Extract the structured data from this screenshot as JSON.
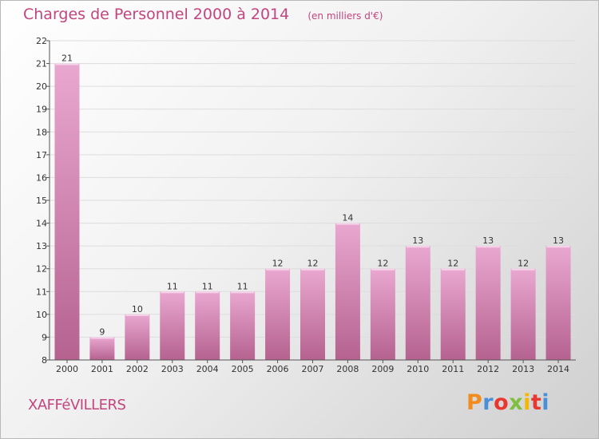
{
  "header": {
    "title": "Charges de Personnel 2000 à 2014",
    "subtitle": "(en milliers d'€)"
  },
  "footer": {
    "commune": "XAFFéVILLERS",
    "logo_text": "Proxiti",
    "logo_colors": [
      "#f28c1e",
      "#4a90d9",
      "#e8372e",
      "#7fbf3f",
      "#f5b800",
      "#e8372e",
      "#4a90d9"
    ]
  },
  "colors": {
    "bar_top": "#e9a8d0",
    "bar_bottom": "#b5628f",
    "grid": "#dddddd",
    "axis": "#555555"
  },
  "chart_data": {
    "type": "bar",
    "categories": [
      "2000",
      "2001",
      "2002",
      "2003",
      "2004",
      "2005",
      "2006",
      "2007",
      "2008",
      "2009",
      "2010",
      "2011",
      "2012",
      "2013",
      "2014"
    ],
    "values": [
      21,
      9,
      10,
      11,
      11,
      11,
      12,
      12,
      14,
      12,
      13,
      12,
      13,
      12,
      13
    ],
    "value_labels": [
      "21",
      "9",
      "10",
      "11",
      "11",
      "11",
      "12",
      "12",
      "14",
      "12",
      "13",
      "12",
      "13",
      "12",
      "13"
    ],
    "yticks": [
      "8",
      "9",
      "10",
      "11",
      "12",
      "13",
      "14",
      "15",
      "16",
      "17",
      "18",
      "19",
      "20",
      "21",
      "22"
    ],
    "ylim": [
      8,
      22
    ],
    "grid": true,
    "legend": "none"
  }
}
